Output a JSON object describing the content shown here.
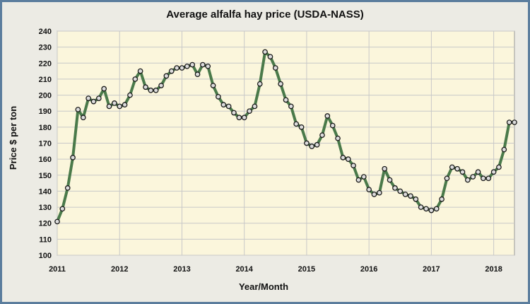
{
  "chart_data": {
    "type": "line",
    "title": "Average alfalfa hay price (USDA-NASS)",
    "xlabel": "Year/Month",
    "ylabel": "Price $ per ton",
    "ylim": [
      100,
      240
    ],
    "yticks": [
      100,
      110,
      120,
      130,
      140,
      150,
      160,
      170,
      180,
      190,
      200,
      210,
      220,
      230,
      240
    ],
    "xlim": [
      2011.0,
      2018.333
    ],
    "xticks": [
      "2011",
      "2012",
      "2013",
      "2014",
      "2015",
      "2016",
      "2017",
      "2018"
    ],
    "grid": true,
    "colors": {
      "line": "#4a7a4a",
      "marker_fill": "#dcdcdc",
      "marker_edge": "#1a1a1a",
      "plot_bg": "#fbf6dc",
      "grid": "#c8c8c8"
    },
    "series": [
      {
        "name": "",
        "x": [
          2011.0,
          2011.083,
          2011.167,
          2011.25,
          2011.333,
          2011.417,
          2011.5,
          2011.583,
          2011.667,
          2011.75,
          2011.833,
          2011.917,
          2012.0,
          2012.083,
          2012.167,
          2012.25,
          2012.333,
          2012.417,
          2012.5,
          2012.583,
          2012.667,
          2012.75,
          2012.833,
          2012.917,
          2013.0,
          2013.083,
          2013.167,
          2013.25,
          2013.333,
          2013.417,
          2013.5,
          2013.583,
          2013.667,
          2013.75,
          2013.833,
          2013.917,
          2014.0,
          2014.083,
          2014.167,
          2014.25,
          2014.333,
          2014.417,
          2014.5,
          2014.583,
          2014.667,
          2014.75,
          2014.833,
          2014.917,
          2015.0,
          2015.083,
          2015.167,
          2015.25,
          2015.333,
          2015.417,
          2015.5,
          2015.583,
          2015.667,
          2015.75,
          2015.833,
          2015.917,
          2016.0,
          2016.083,
          2016.167,
          2016.25,
          2016.333,
          2016.417,
          2016.5,
          2016.583,
          2016.667,
          2016.75,
          2016.833,
          2016.917,
          2017.0,
          2017.083,
          2017.167,
          2017.25,
          2017.333,
          2017.417,
          2017.5,
          2017.583,
          2017.667,
          2017.75,
          2017.833,
          2017.917,
          2018.0,
          2018.083,
          2018.167,
          2018.25,
          2018.333
        ],
        "y": [
          121,
          129,
          142,
          161,
          191,
          186,
          198,
          196,
          198,
          204,
          193,
          195,
          193,
          194,
          200,
          210,
          215,
          205,
          203,
          203,
          206,
          212,
          215,
          217,
          217,
          218,
          219,
          213,
          219,
          218,
          206,
          199,
          194,
          193,
          189,
          186,
          186,
          190,
          193,
          207,
          227,
          224,
          217,
          207,
          197,
          193,
          182,
          180,
          170,
          168,
          169,
          175,
          187,
          181,
          173,
          161,
          160,
          156,
          147,
          149,
          141,
          138,
          139,
          154,
          147,
          142,
          140,
          138,
          137,
          135,
          130,
          129,
          128,
          129,
          135,
          148,
          155,
          154,
          152,
          147,
          149,
          152,
          148,
          148,
          152,
          155,
          166,
          183,
          183
        ]
      }
    ]
  }
}
